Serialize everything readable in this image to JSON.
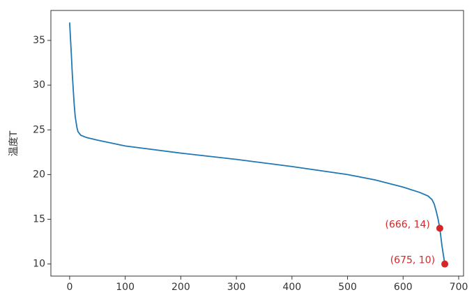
{
  "chart_data": {
    "type": "line",
    "ylabel": "温度T",
    "x": [
      0,
      3,
      5,
      8,
      10,
      13,
      15,
      20,
      30,
      50,
      100,
      150,
      200,
      250,
      300,
      350,
      400,
      450,
      500,
      550,
      600,
      630,
      645,
      652,
      656,
      660,
      663,
      666,
      670,
      675
    ],
    "series": [
      {
        "name": "温度T",
        "color": "#1f77b4",
        "values": [
          37,
          33.5,
          31,
          28,
          26.5,
          25.3,
          24.8,
          24.4,
          24.15,
          23.85,
          23.2,
          22.8,
          22.4,
          22.05,
          21.7,
          21.3,
          20.9,
          20.45,
          20.0,
          19.4,
          18.6,
          18.0,
          17.6,
          17.2,
          16.7,
          15.8,
          15.0,
          14,
          12,
          10
        ]
      }
    ],
    "points": [
      {
        "x": 666,
        "y": 14,
        "label": "(666, 14)"
      },
      {
        "x": 675,
        "y": 10,
        "label": "(675, 10)"
      }
    ],
    "point_color": "#d62728",
    "xlim": [
      -33.75,
      708.75
    ],
    "ylim": [
      8.65,
      38.35
    ],
    "xticks": [
      0,
      100,
      200,
      300,
      400,
      500,
      600,
      700
    ],
    "yticks": [
      10,
      15,
      20,
      25,
      30,
      35
    ]
  }
}
